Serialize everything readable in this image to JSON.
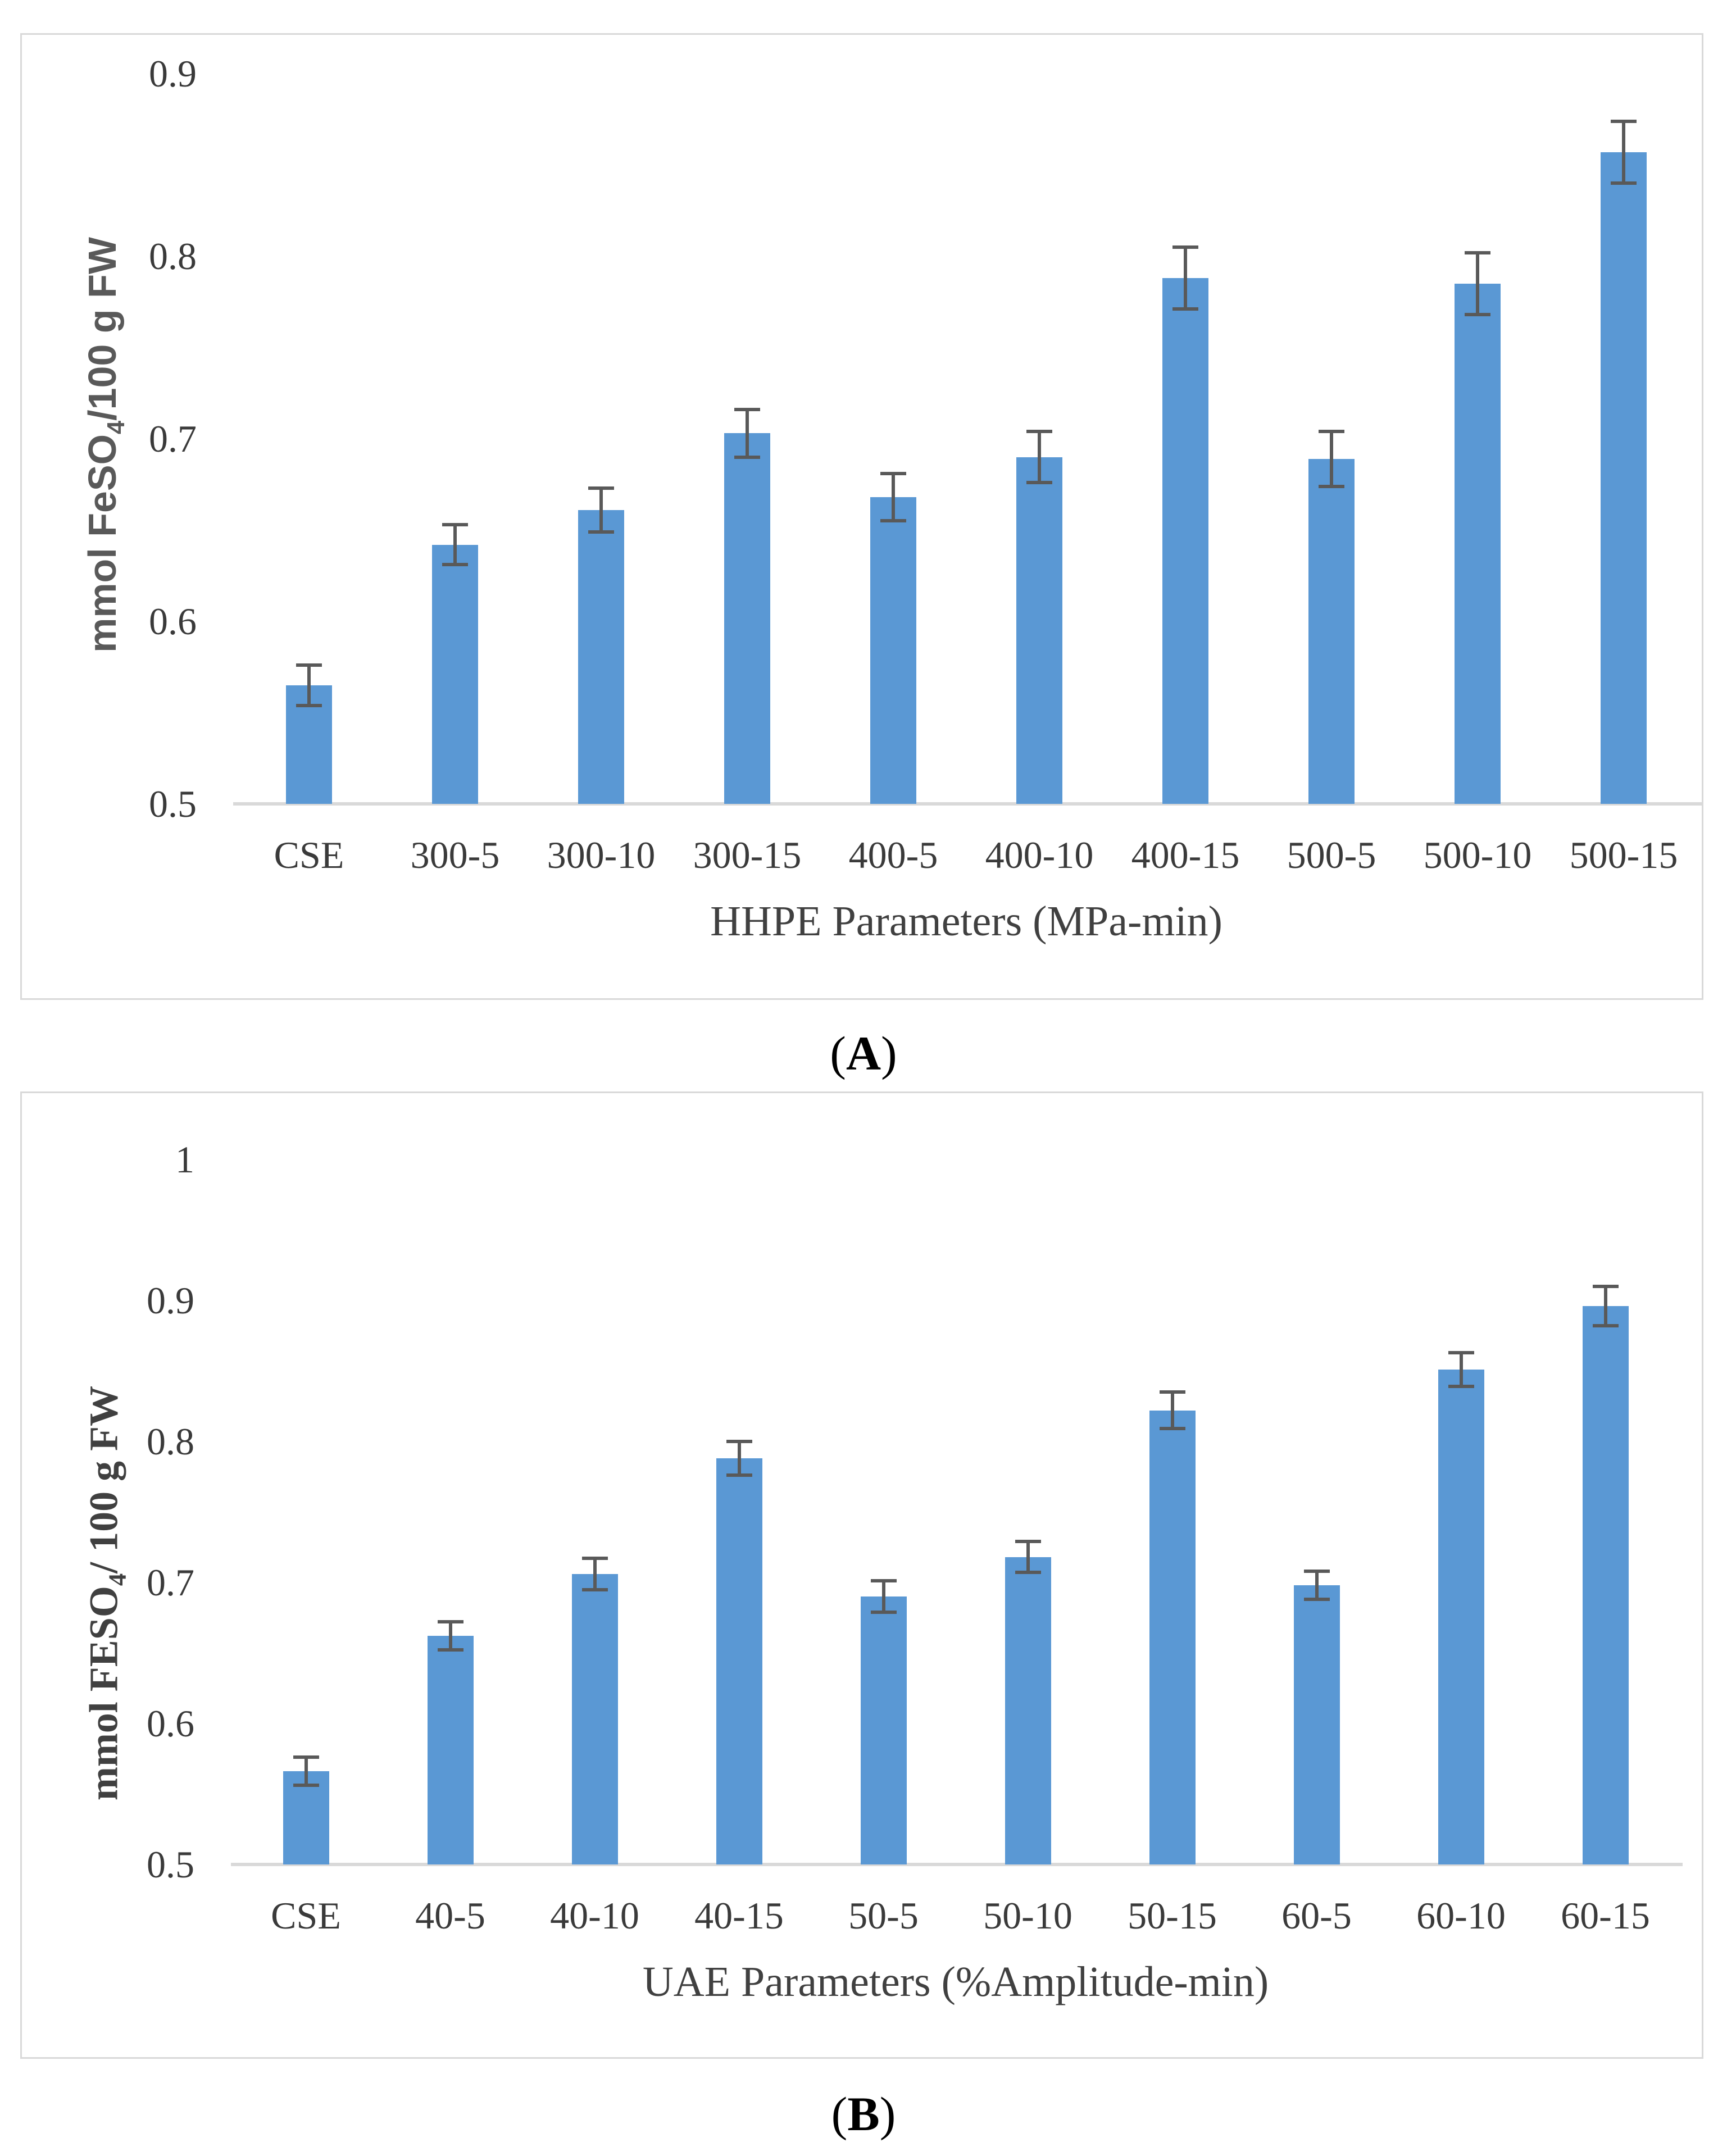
{
  "figure": {
    "background": "#ffffff",
    "captions": [
      {
        "open": "(",
        "letter": "A",
        "close": ")"
      },
      {
        "open": "(",
        "letter": "B",
        "close": ")"
      }
    ]
  },
  "chart_data": [
    {
      "type": "bar",
      "panel": "A",
      "title": "",
      "categories": [
        "CSE",
        "300-5",
        "300-10",
        "300-15",
        "400-5",
        "400-10",
        "400-15",
        "500-5",
        "500-10",
        "500-15"
      ],
      "values": [
        0.565,
        0.642,
        0.661,
        0.703,
        0.668,
        0.69,
        0.788,
        0.689,
        0.785,
        0.857
      ],
      "errors": [
        0.011,
        0.011,
        0.012,
        0.013,
        0.013,
        0.014,
        0.017,
        0.015,
        0.017,
        0.017
      ],
      "xlabel": "HHPE Parameters (MPa-min)",
      "ylabel": "mmol FeSO4/100 g FW",
      "ylabel_parts": {
        "pre": "mmol FeSO",
        "sub": "4",
        "post": "/100 g FW"
      },
      "ylim": [
        0.5,
        0.9
      ],
      "yticks": [
        "0.9",
        "0.8",
        "0.7",
        "0.6",
        "0.5"
      ],
      "bar_color": "#5A98D4",
      "error_color": "#595959",
      "axis_color": "#D9D9D9",
      "grid": false,
      "legend": "none"
    },
    {
      "type": "bar",
      "panel": "B",
      "title": "",
      "categories": [
        "CSE",
        "40-5",
        "40-10",
        "40-15",
        "50-5",
        "50-10",
        "50-15",
        "60-5",
        "60-10",
        "60-15"
      ],
      "values": [
        0.566,
        0.662,
        0.706,
        0.788,
        0.69,
        0.718,
        0.822,
        0.698,
        0.851,
        0.896
      ],
      "errors": [
        0.01,
        0.01,
        0.011,
        0.012,
        0.011,
        0.011,
        0.013,
        0.01,
        0.012,
        0.014
      ],
      "xlabel": "UAE Parameters (%Amplitude-min)",
      "ylabel": "mmol FESO4/ 100 g FW",
      "ylabel_parts": {
        "pre": "mmol FESO",
        "sub": "4",
        "post": "/ 100 g FW"
      },
      "ylim": [
        0.5,
        1.0
      ],
      "yticks": [
        "1",
        "0.9",
        "0.8",
        "0.7",
        "0.6",
        "0.5"
      ],
      "bar_color": "#5A98D4",
      "error_color": "#595959",
      "axis_color": "#D9D9D9",
      "grid": false,
      "legend": "none"
    }
  ]
}
